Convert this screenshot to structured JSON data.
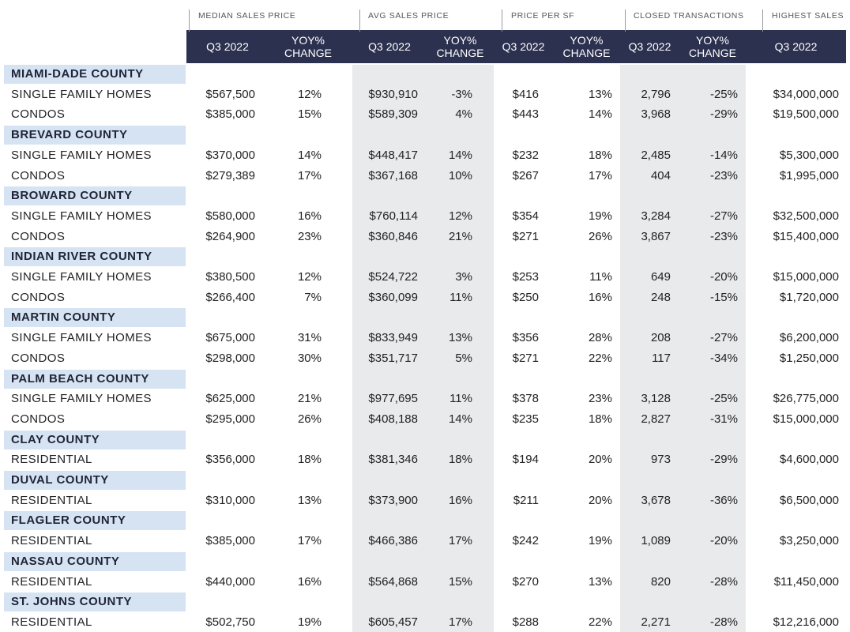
{
  "group_headers": [
    "MEDIAN SALES PRICE",
    "AVG SALES PRICE",
    "PRICE PER SF",
    "CLOSED TRANSACTIONS",
    "HIGHEST SALES"
  ],
  "sub_headers": [
    [
      "Q3 2022"
    ],
    [
      "YOY%",
      "CHANGE"
    ],
    [
      "Q3 2022"
    ],
    [
      "YOY%",
      "CHANGE"
    ],
    [
      "Q3 2022"
    ],
    [
      "YOY%",
      "CHANGE"
    ],
    [
      "Q3 2022"
    ],
    [
      "YOY%",
      "CHANGE"
    ],
    [
      "Q3 2022"
    ]
  ],
  "counties": [
    {
      "name": "MIAMI-DADE COUNTY",
      "rows": [
        {
          "type": "SINGLE FAMILY HOMES",
          "values": [
            "$567,500",
            "12%",
            "$930,910",
            "-3%",
            "$416",
            "13%",
            "2,796",
            "-25%",
            "$34,000,000"
          ]
        },
        {
          "type": "CONDOS",
          "values": [
            "$385,000",
            "15%",
            "$589,309",
            "4%",
            "$443",
            "14%",
            "3,968",
            "-29%",
            "$19,500,000"
          ]
        }
      ]
    },
    {
      "name": "BREVARD COUNTY",
      "rows": [
        {
          "type": "SINGLE FAMILY HOMES",
          "values": [
            "$370,000",
            "14%",
            "$448,417",
            "14%",
            "$232",
            "18%",
            "2,485",
            "-14%",
            "$5,300,000"
          ]
        },
        {
          "type": "CONDOS",
          "values": [
            "$279,389",
            "17%",
            "$367,168",
            "10%",
            "$267",
            "17%",
            "404",
            "-23%",
            "$1,995,000"
          ]
        }
      ]
    },
    {
      "name": "BROWARD COUNTY",
      "rows": [
        {
          "type": "SINGLE FAMILY HOMES",
          "values": [
            "$580,000",
            "16%",
            "$760,114",
            "12%",
            "$354",
            "19%",
            "3,284",
            "-27%",
            "$32,500,000"
          ]
        },
        {
          "type": "CONDOS",
          "values": [
            "$264,900",
            "23%",
            "$360,846",
            "21%",
            "$271",
            "26%",
            "3,867",
            "-23%",
            "$15,400,000"
          ]
        }
      ]
    },
    {
      "name": "INDIAN RIVER COUNTY",
      "rows": [
        {
          "type": "SINGLE FAMILY HOMES",
          "values": [
            "$380,500",
            "12%",
            "$524,722",
            "3%",
            "$253",
            "11%",
            "649",
            "-20%",
            "$15,000,000"
          ]
        },
        {
          "type": "CONDOS",
          "values": [
            "$266,400",
            "7%",
            "$360,099",
            "11%",
            "$250",
            "16%",
            "248",
            "-15%",
            "$1,720,000"
          ]
        }
      ]
    },
    {
      "name": "MARTIN COUNTY",
      "rows": [
        {
          "type": "SINGLE FAMILY HOMES",
          "values": [
            "$675,000",
            "31%",
            "$833,949",
            "13%",
            "$356",
            "28%",
            "208",
            "-27%",
            "$6,200,000"
          ]
        },
        {
          "type": "CONDOS",
          "values": [
            "$298,000",
            "30%",
            "$351,717",
            "5%",
            "$271",
            "22%",
            "117",
            "-34%",
            "$1,250,000"
          ]
        }
      ]
    },
    {
      "name": "PALM BEACH COUNTY",
      "rows": [
        {
          "type": "SINGLE FAMILY HOMES",
          "values": [
            "$625,000",
            "21%",
            "$977,695",
            "11%",
            "$378",
            "23%",
            "3,128",
            "-25%",
            "$26,775,000"
          ]
        },
        {
          "type": "CONDOS",
          "values": [
            "$295,000",
            "26%",
            "$408,188",
            "14%",
            "$235",
            "18%",
            "2,827",
            "-31%",
            "$15,000,000"
          ]
        }
      ]
    },
    {
      "name": "CLAY COUNTY",
      "rows": [
        {
          "type": "RESIDENTIAL",
          "values": [
            "$356,000",
            "18%",
            "$381,346",
            "18%",
            "$194",
            "20%",
            "973",
            "-29%",
            "$4,600,000"
          ]
        }
      ]
    },
    {
      "name": "DUVAL COUNTY",
      "rows": [
        {
          "type": "RESIDENTIAL",
          "values": [
            "$310,000",
            "13%",
            "$373,900",
            "16%",
            "$211",
            "20%",
            "3,678",
            "-36%",
            "$6,500,000"
          ]
        }
      ]
    },
    {
      "name": "FLAGLER COUNTY",
      "rows": [
        {
          "type": "RESIDENTIAL",
          "values": [
            "$385,000",
            "17%",
            "$466,386",
            "17%",
            "$242",
            "19%",
            "1,089",
            "-20%",
            "$3,250,000"
          ]
        }
      ]
    },
    {
      "name": "NASSAU COUNTY",
      "rows": [
        {
          "type": "RESIDENTIAL",
          "values": [
            "$440,000",
            "16%",
            "$564,868",
            "15%",
            "$270",
            "13%",
            "820",
            "-28%",
            "$11,450,000"
          ]
        }
      ]
    },
    {
      "name": "ST. JOHNS COUNTY",
      "rows": [
        {
          "type": "RESIDENTIAL",
          "values": [
            "$502,750",
            "19%",
            "$605,457",
            "17%",
            "$288",
            "22%",
            "2,271",
            "-28%",
            "$12,216,000"
          ]
        }
      ]
    }
  ]
}
